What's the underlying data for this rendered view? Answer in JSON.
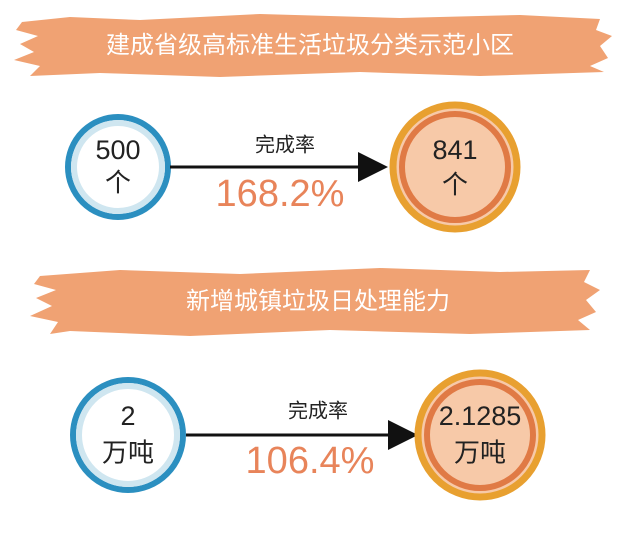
{
  "sections": [
    {
      "title": "建成省级高标准生活垃圾分类示范小区",
      "target": {
        "value": "500",
        "unit": "个"
      },
      "rate_label": "完成率",
      "rate": "168.2%",
      "actual": {
        "value": "841",
        "unit": "个"
      }
    },
    {
      "title": "新增城镇垃圾日处理能力",
      "target": {
        "value": "2",
        "unit": "万吨"
      },
      "rate_label": "完成率",
      "rate": "106.4%",
      "actual": {
        "value": "2.1285",
        "unit": "万吨"
      }
    }
  ]
}
